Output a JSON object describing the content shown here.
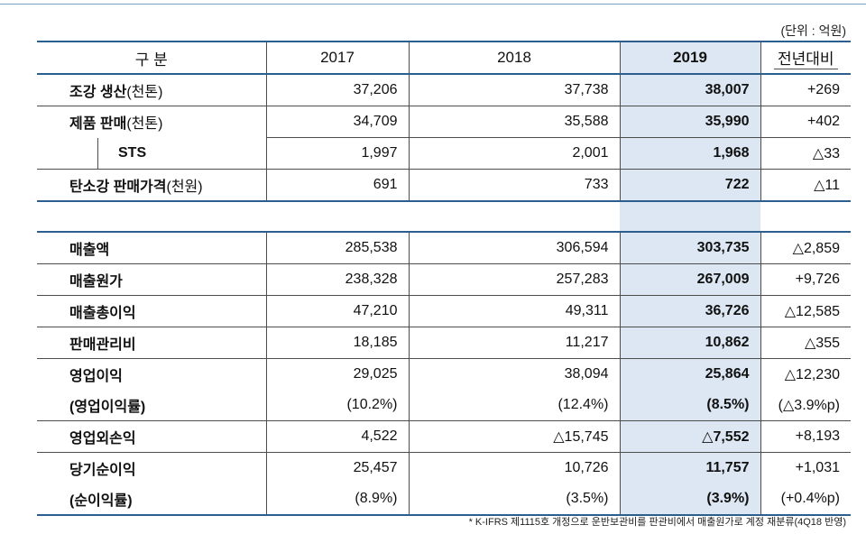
{
  "unit_note": "(단위 : 억원)",
  "header": {
    "label": "구 분",
    "y2017": "2017",
    "y2018": "2018",
    "y2019": "2019",
    "yoy": "전년대비"
  },
  "section1": [
    {
      "label": "조강 생산",
      "unit": "(천톤)",
      "v2017": "37,206",
      "v2018": "37,738",
      "v2019": "38,007",
      "yoy": "+269"
    },
    {
      "label": "제품 판매",
      "unit": "(천톤)",
      "v2017": "34,709",
      "v2018": "35,588",
      "v2019": "35,990",
      "yoy": "+402"
    },
    {
      "label": "STS",
      "unit": "",
      "v2017": "1,997",
      "v2018": "2,001",
      "v2019": "1,968",
      "yoy": "△33"
    },
    {
      "label": "탄소강 판매가격",
      "unit": "(천원)",
      "v2017": "691",
      "v2018": "733",
      "v2019": "722",
      "yoy": "△11"
    }
  ],
  "section2": [
    {
      "label": "매출액",
      "v2017": "285,538",
      "v2018": "306,594",
      "v2019": "303,735",
      "yoy": "△2,859"
    },
    {
      "label": "매출원가",
      "v2017": "238,328",
      "v2018": "257,283",
      "v2019": "267,009",
      "yoy": "+9,726"
    },
    {
      "label": "매출총이익",
      "v2017": "47,210",
      "v2018": "49,311",
      "v2019": "36,726",
      "yoy": "△12,585"
    },
    {
      "label": "판매관리비",
      "v2017": "18,185",
      "v2018": "11,217",
      "v2019": "10,862",
      "yoy": "△355"
    },
    {
      "label": "영업이익",
      "v2017": "29,025",
      "v2018": "38,094",
      "v2019": "25,864",
      "yoy": "△12,230"
    },
    {
      "label": "(영업이익률)",
      "v2017": "(10.2%)",
      "v2018": "(12.4%)",
      "v2019": "(8.5%)",
      "yoy": "(△3.9%p)"
    },
    {
      "label": "영업외손익",
      "v2017": "4,522",
      "v2018": "△15,745",
      "v2019": "△7,552",
      "yoy": "+8,193"
    },
    {
      "label": "당기순이익",
      "v2017": "25,457",
      "v2018": "10,726",
      "v2019": "11,757",
      "yoy": "+1,031"
    },
    {
      "label": "(순이익률)",
      "v2017": "(8.9%)",
      "v2018": "(3.5%)",
      "v2019": "(3.9%)",
      "yoy": "(+0.4%p)"
    }
  ],
  "footnote": "* K-IFRS 제1115호 개정으로 운반보관비를 판관비에서 매출원가로 계정 재분류(4Q18 반영)"
}
